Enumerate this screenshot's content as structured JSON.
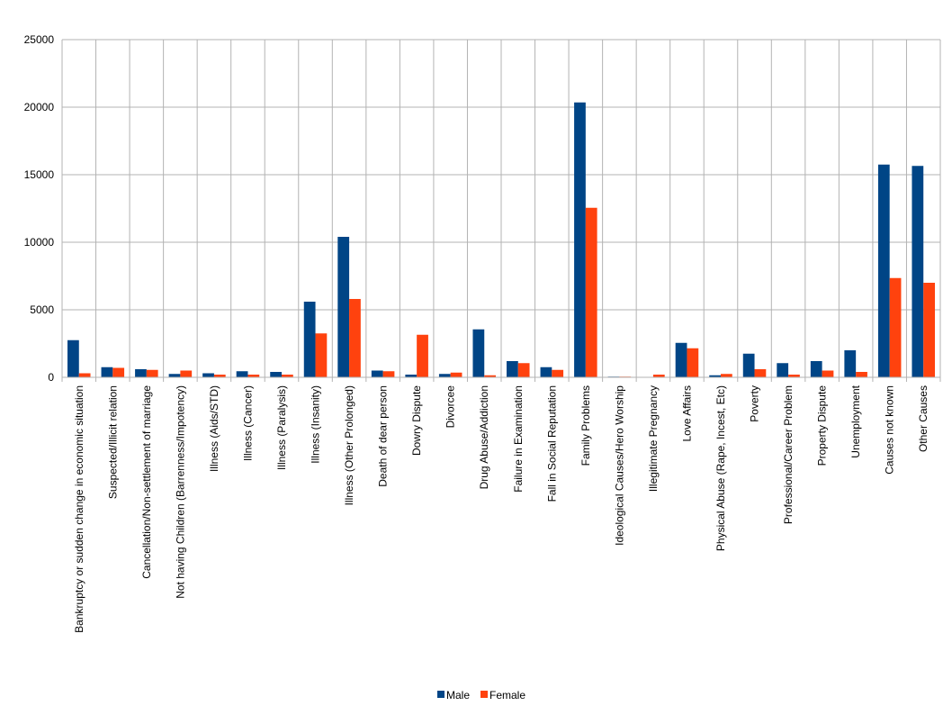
{
  "chart_data": {
    "type": "bar",
    "categories": [
      "Bankruptcy or sudden change in economic situation",
      "Suspected/Illicit relation",
      "Cancellation/Non-settlement of marriage",
      "Not having Children (Barrenness/Impotency)",
      "Illness (Aids/STD)",
      "Illness (Cancer)",
      "Illness (Paralysis)",
      "Illness (Insanity)",
      "Illness (Other Prolonged)",
      "Death of dear person",
      "Dowry Dispute",
      "Divorcee",
      "Drug Abuse/Addiction",
      "Failure in Examination",
      "Fall in Social Reputation",
      "Family Problems",
      "Ideological Causes/Hero Worship",
      "Illegitimate Pregnancy",
      "Love Affairs",
      "Physical Abuse (Rape, Incest, Etc)",
      "Poverty",
      "Professional/Career Problem",
      "Property Dispute",
      "Unemployment",
      "Causes not known",
      "Other Causes"
    ],
    "series": [
      {
        "name": "Male",
        "color": "#004586",
        "values": [
          2750,
          750,
          600,
          250,
          300,
          450,
          400,
          5600,
          10400,
          500,
          200,
          250,
          3550,
          1200,
          750,
          20350,
          50,
          0,
          2550,
          150,
          1750,
          1050,
          1200,
          2000,
          15750,
          15650
        ]
      },
      {
        "name": "Female",
        "color": "#ff420e",
        "values": [
          300,
          700,
          550,
          500,
          200,
          200,
          200,
          3250,
          5800,
          450,
          3150,
          350,
          150,
          1050,
          550,
          12550,
          50,
          200,
          2150,
          250,
          600,
          200,
          500,
          400,
          7350,
          7000
        ]
      }
    ],
    "yticks": [
      "0",
      "5000",
      "10000",
      "15000",
      "20000",
      "25000"
    ],
    "ylim": [
      0,
      25000
    ],
    "grid": true,
    "legend": "bottom-center",
    "title": "",
    "xlabel": "",
    "ylabel": ""
  }
}
